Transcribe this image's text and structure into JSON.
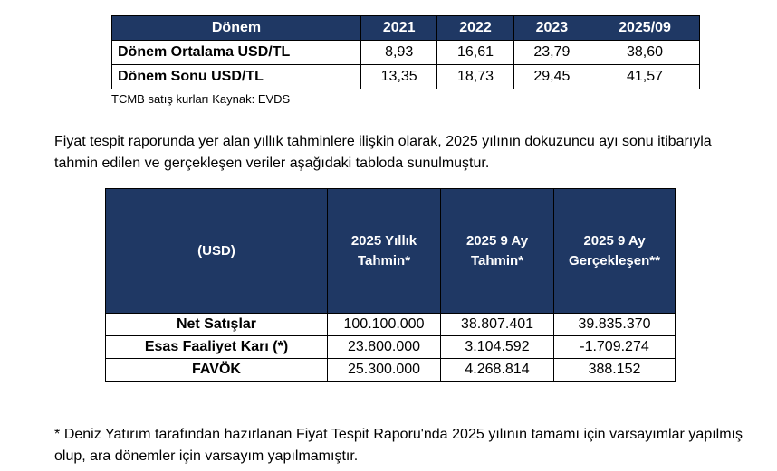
{
  "rates_table": {
    "headers": [
      "Dönem",
      "2021",
      "2022",
      "2023",
      "2025/09"
    ],
    "rows": [
      {
        "label": "Dönem Ortalama USD/TL",
        "values": [
          "8,93",
          "16,61",
          "23,79",
          "38,60"
        ]
      },
      {
        "label": "Dönem Sonu USD/TL",
        "values": [
          "13,35",
          "18,73",
          "29,45",
          "41,57"
        ]
      }
    ],
    "source": "TCMB satış kurları Kaynak: EVDS"
  },
  "intro_text": "Fiyat tespit raporunda yer alan yıllık tahminlere ilişkin olarak, 2025 yılının dokuzuncu ayı sonu itibarıyla tahmin edilen ve gerçekleşen veriler aşağıdaki tabloda sunulmuştur.",
  "forecast_table": {
    "headers": [
      "(USD)",
      "2025 Yıllık Tahmin*",
      "2025 9 Ay Tahmin*",
      "2025  9 Ay Gerçekleşen**"
    ],
    "rows": [
      {
        "label": "Net Satışlar",
        "values": [
          "100.100.000",
          "38.807.401",
          "39.835.370"
        ]
      },
      {
        "label": "Esas Faaliyet Karı (*)",
        "values": [
          "23.800.000",
          "3.104.592",
          "-1.709.274"
        ]
      },
      {
        "label": "FAVÖK",
        "values": [
          "25.300.000",
          "4.268.814",
          "388.152"
        ]
      }
    ]
  },
  "footnote": "* Deniz Yatırım tarafından hazırlanan Fiyat Tespit Raporu'nda 2025 yılının tamamı için varsayımlar yapılmış olup, ara dönemler için varsayım yapılmamıştır."
}
